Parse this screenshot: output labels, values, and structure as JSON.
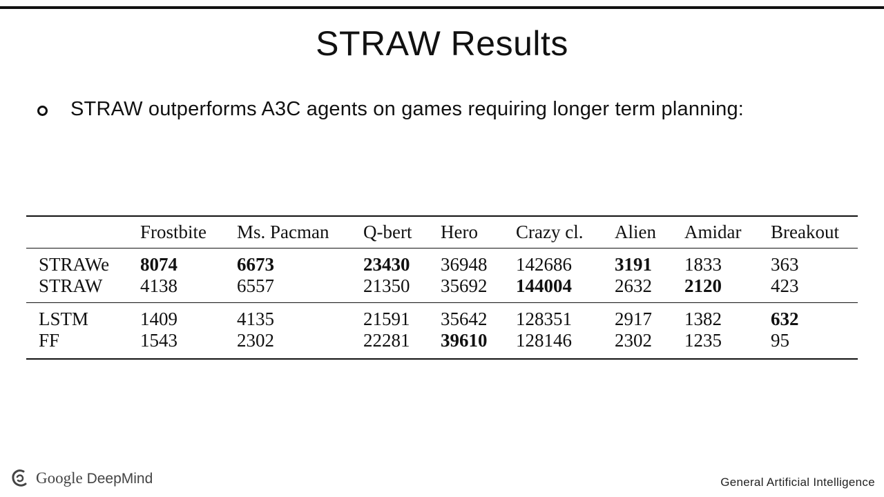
{
  "slide": {
    "title": "STRAW Results",
    "bullet": "STRAW outperforms A3C agents on games requiring longer term planning:"
  },
  "table": {
    "headers": [
      "",
      "Frostbite",
      "Ms. Pacman",
      "Q-bert",
      "Hero",
      "Crazy cl.",
      "Alien",
      "Amidar",
      "Breakout"
    ],
    "groups": [
      [
        {
          "name": "STRAWe",
          "values": [
            "8074",
            "6673",
            "23430",
            "36948",
            "142686",
            "3191",
            "1833",
            "363"
          ],
          "bold": [
            true,
            true,
            true,
            false,
            false,
            true,
            false,
            false
          ]
        },
        {
          "name": "STRAW",
          "values": [
            "4138",
            "6557",
            "21350",
            "35692",
            "144004",
            "2632",
            "2120",
            "423"
          ],
          "bold": [
            false,
            false,
            false,
            false,
            true,
            false,
            true,
            false
          ]
        }
      ],
      [
        {
          "name": "LSTM",
          "values": [
            "1409",
            "4135",
            "21591",
            "35642",
            "128351",
            "2917",
            "1382",
            "632"
          ],
          "bold": [
            false,
            false,
            false,
            false,
            false,
            false,
            false,
            true
          ]
        },
        {
          "name": "FF",
          "values": [
            "1543",
            "2302",
            "22281",
            "39610",
            "128146",
            "2302",
            "1235",
            "95"
          ],
          "bold": [
            false,
            false,
            false,
            true,
            false,
            false,
            false,
            false
          ]
        }
      ]
    ]
  },
  "footer": {
    "logo_google": "Google",
    "logo_deepmind": "DeepMind",
    "tagline": "General Artificial Intelligence"
  }
}
